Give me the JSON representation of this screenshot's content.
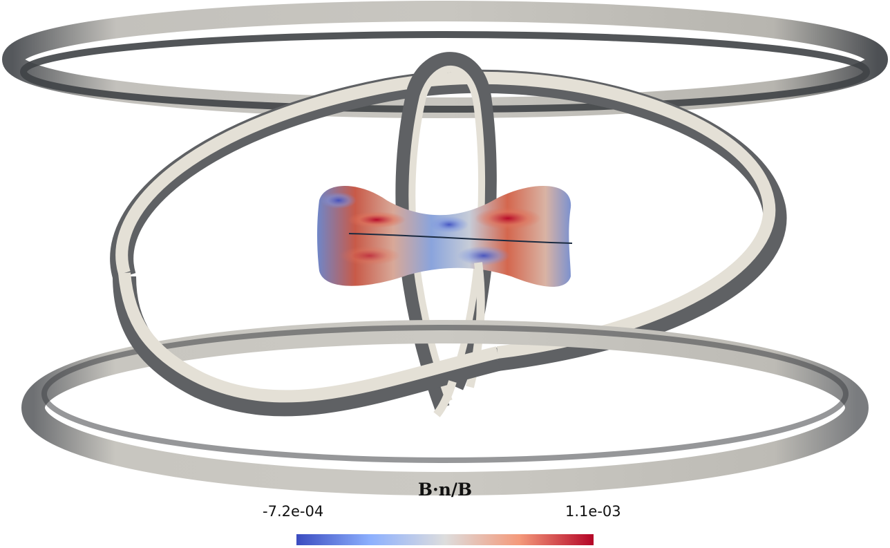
{
  "colorbar": {
    "title": "B·n/B",
    "min_label": "-7.2e-04",
    "max_label": "1.1e-03",
    "min_value": -0.00072,
    "max_value": 0.0011,
    "colormap": "cool-to-warm",
    "colors": [
      "#3b4cc0",
      "#8db0fe",
      "#dddddd",
      "#f49a7b",
      "#b40426"
    ]
  },
  "scene": {
    "coil_color": "#d6d3cc",
    "coil_shadow": "#5f6164",
    "surface_field": "B·n/B"
  }
}
